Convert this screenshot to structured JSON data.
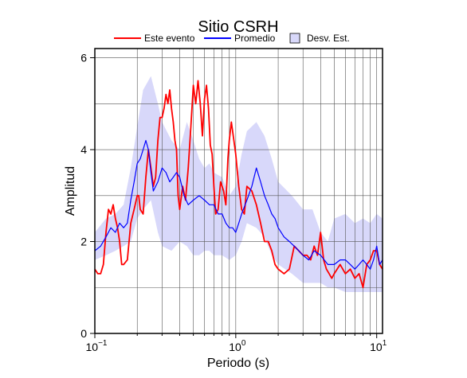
{
  "chart_data": {
    "type": "line",
    "title": "Sitio CSRH",
    "xlabel": "Periodo (s)",
    "ylabel": "Amplitud",
    "xscale": "log",
    "xlim": [
      0.1,
      11
    ],
    "ylim": [
      0,
      6.2
    ],
    "grid": true,
    "legend_position": "top",
    "x_ticks": [
      {
        "value": 0.1,
        "base": "10",
        "exp": "−1"
      },
      {
        "value": 1,
        "base": "10",
        "exp": "0"
      },
      {
        "value": 10,
        "base": "10",
        "exp": "1"
      }
    ],
    "y_ticks": [
      0,
      2,
      4,
      6
    ],
    "legend": [
      {
        "label": "Este evento",
        "kind": "line",
        "color": "#ff0000"
      },
      {
        "label": "Promedio",
        "kind": "line",
        "color": "#0000ff"
      },
      {
        "label": "Desv. Est.",
        "kind": "band",
        "color": "#d8d8fa"
      }
    ],
    "band": {
      "name": "Desv. Est.",
      "color": "#d8d8fa",
      "x": [
        0.1,
        0.12,
        0.14,
        0.16,
        0.18,
        0.2,
        0.22,
        0.25,
        0.28,
        0.3,
        0.35,
        0.4,
        0.45,
        0.5,
        0.55,
        0.6,
        0.65,
        0.7,
        0.8,
        0.9,
        1.0,
        1.1,
        1.2,
        1.4,
        1.6,
        1.8,
        2.0,
        2.5,
        3.0,
        3.5,
        4.0,
        4.5,
        5.0,
        6.0,
        7.0,
        8.0,
        9.0,
        10.0,
        11.0
      ],
      "upper": [
        2.2,
        2.5,
        2.6,
        2.8,
        3.6,
        4.5,
        5.3,
        5.6,
        5.0,
        4.6,
        4.2,
        4.0,
        4.6,
        4.2,
        3.8,
        3.6,
        3.7,
        3.5,
        3.4,
        3.0,
        3.2,
        3.9,
        4.4,
        4.6,
        4.3,
        3.8,
        3.3,
        3.0,
        2.7,
        2.7,
        2.2,
        2.0,
        2.5,
        2.6,
        2.4,
        2.5,
        2.4,
        2.6,
        2.5
      ],
      "lower": [
        1.6,
        1.7,
        1.8,
        1.9,
        2.0,
        2.5,
        2.7,
        2.9,
        2.2,
        1.9,
        1.8,
        2.0,
        1.9,
        1.7,
        1.7,
        1.8,
        1.8,
        1.7,
        1.7,
        1.6,
        1.7,
        2.0,
        2.4,
        2.3,
        2.1,
        1.7,
        1.5,
        1.3,
        1.1,
        1.1,
        1.1,
        1.0,
        1.0,
        0.9,
        0.9,
        0.9,
        0.9,
        0.9,
        0.9
      ]
    },
    "series": [
      {
        "name": "Este evento",
        "color": "#ff0000",
        "x": [
          0.1,
          0.105,
          0.11,
          0.115,
          0.12,
          0.125,
          0.13,
          0.135,
          0.14,
          0.145,
          0.15,
          0.155,
          0.16,
          0.17,
          0.18,
          0.19,
          0.2,
          0.205,
          0.21,
          0.22,
          0.23,
          0.24,
          0.25,
          0.26,
          0.27,
          0.28,
          0.29,
          0.3,
          0.31,
          0.32,
          0.33,
          0.34,
          0.35,
          0.36,
          0.37,
          0.38,
          0.39,
          0.4,
          0.42,
          0.44,
          0.46,
          0.48,
          0.5,
          0.52,
          0.54,
          0.56,
          0.58,
          0.6,
          0.62,
          0.64,
          0.66,
          0.68,
          0.7,
          0.72,
          0.75,
          0.78,
          0.8,
          0.82,
          0.85,
          0.88,
          0.9,
          0.93,
          0.96,
          1.0,
          1.05,
          1.1,
          1.15,
          1.2,
          1.3,
          1.4,
          1.5,
          1.6,
          1.7,
          1.8,
          1.9,
          2.0,
          2.2,
          2.4,
          2.6,
          2.8,
          3.0,
          3.2,
          3.4,
          3.6,
          3.8,
          4.0,
          4.2,
          4.4,
          4.6,
          4.8,
          5.0,
          5.5,
          6.0,
          6.5,
          7.0,
          7.5,
          8.0,
          8.5,
          9.0,
          9.5,
          10.0,
          10.5,
          11.0
        ],
        "values": [
          1.4,
          1.3,
          1.3,
          1.5,
          2.2,
          2.7,
          2.6,
          2.8,
          2.5,
          2.3,
          2.0,
          1.5,
          1.5,
          1.6,
          2.4,
          2.7,
          3.0,
          3.0,
          2.7,
          2.6,
          3.4,
          4.0,
          3.6,
          3.2,
          3.4,
          4.2,
          4.7,
          4.7,
          4.9,
          5.2,
          5.0,
          5.3,
          4.9,
          4.6,
          4.2,
          4.0,
          3.0,
          2.7,
          3.2,
          2.9,
          3.6,
          4.5,
          5.4,
          5.0,
          5.5,
          5.0,
          4.3,
          5.1,
          5.4,
          4.9,
          4.1,
          3.9,
          3.2,
          2.6,
          2.7,
          3.3,
          3.2,
          3.1,
          2.8,
          3.8,
          4.2,
          4.6,
          4.3,
          3.9,
          3.2,
          2.7,
          2.6,
          3.2,
          3.1,
          2.8,
          2.4,
          2.0,
          2.0,
          1.8,
          1.5,
          1.4,
          1.3,
          1.4,
          1.9,
          1.8,
          1.7,
          1.7,
          1.6,
          1.9,
          1.7,
          2.2,
          1.6,
          1.4,
          1.3,
          1.2,
          1.3,
          1.5,
          1.3,
          1.4,
          1.2,
          1.3,
          1.0,
          1.5,
          1.6,
          1.8,
          1.8,
          1.5,
          1.4
        ]
      },
      {
        "name": "Promedio",
        "color": "#0000ff",
        "x": [
          0.1,
          0.11,
          0.12,
          0.13,
          0.14,
          0.15,
          0.16,
          0.17,
          0.18,
          0.19,
          0.2,
          0.21,
          0.22,
          0.23,
          0.24,
          0.25,
          0.26,
          0.28,
          0.3,
          0.32,
          0.34,
          0.36,
          0.38,
          0.4,
          0.43,
          0.46,
          0.5,
          0.55,
          0.6,
          0.65,
          0.7,
          0.75,
          0.8,
          0.85,
          0.9,
          0.95,
          1.0,
          1.05,
          1.1,
          1.2,
          1.3,
          1.4,
          1.5,
          1.6,
          1.7,
          1.8,
          1.9,
          2.0,
          2.2,
          2.4,
          2.6,
          2.8,
          3.0,
          3.3,
          3.6,
          4.0,
          4.5,
          5.0,
          5.5,
          6.0,
          6.5,
          7.0,
          7.5,
          8.0,
          8.5,
          9.0,
          9.5,
          10.0,
          10.5,
          11.0
        ],
        "values": [
          1.8,
          1.9,
          2.1,
          2.3,
          2.2,
          2.4,
          2.3,
          2.4,
          2.9,
          3.3,
          3.7,
          3.8,
          4.0,
          4.2,
          4.0,
          3.5,
          3.1,
          3.3,
          3.6,
          3.5,
          3.3,
          3.4,
          3.5,
          3.4,
          3.0,
          2.8,
          2.9,
          3.0,
          2.9,
          2.8,
          2.8,
          2.6,
          2.6,
          2.4,
          2.3,
          2.3,
          2.2,
          2.4,
          2.6,
          2.9,
          3.2,
          3.6,
          3.3,
          3.0,
          2.8,
          2.6,
          2.5,
          2.3,
          2.1,
          2.0,
          1.9,
          1.8,
          1.7,
          1.6,
          1.8,
          1.7,
          1.5,
          1.5,
          1.6,
          1.6,
          1.5,
          1.4,
          1.5,
          1.6,
          1.5,
          1.4,
          1.6,
          1.9,
          1.5,
          1.6
        ]
      }
    ]
  }
}
